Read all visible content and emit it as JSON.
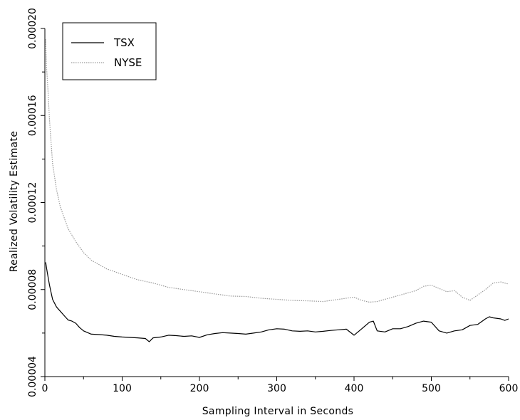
{
  "chart_data": {
    "type": "line",
    "title": "",
    "xlabel": "Sampling Interval in Seconds",
    "ylabel": "Realized Volatility Estimate",
    "xlim": [
      0,
      600
    ],
    "ylim": [
      4e-05,
      0.0002
    ],
    "xticks": [
      0,
      100,
      200,
      300,
      400,
      500,
      600
    ],
    "xtick_labels": [
      "0",
      "100",
      "200",
      "300",
      "400",
      "500",
      "600"
    ],
    "yticks": [
      4e-05,
      8e-05,
      0.00012,
      0.00016,
      0.0002
    ],
    "ytick_labels": [
      "0.00004",
      "0.00008",
      "0.00012",
      "0.00016",
      "0.00020"
    ],
    "yticks_minor": [
      6e-05,
      0.0001,
      0.00014,
      0.00018
    ],
    "grid": false,
    "legend": {
      "placement": "top-left"
    },
    "series": [
      {
        "name": "TSX",
        "color": "#000000",
        "style": "solid",
        "x": [
          1,
          3,
          6,
          10,
          15,
          20,
          25,
          30,
          35,
          40,
          45,
          50,
          60,
          70,
          80,
          90,
          100,
          110,
          120,
          130,
          135,
          140,
          150,
          160,
          170,
          180,
          190,
          200,
          210,
          220,
          230,
          240,
          250,
          260,
          270,
          280,
          290,
          300,
          310,
          320,
          330,
          340,
          350,
          360,
          370,
          380,
          390,
          400,
          410,
          420,
          425,
          430,
          440,
          450,
          460,
          470,
          480,
          490,
          500,
          510,
          520,
          530,
          540,
          550,
          560,
          570,
          575,
          580,
          590,
          595,
          600
        ],
        "y": [
          9.25e-05,
          8.8e-05,
          8.2e-05,
          7.55e-05,
          7.2e-05,
          7e-05,
          6.8e-05,
          6.6e-05,
          6.55e-05,
          6.45e-05,
          6.25e-05,
          6.1e-05,
          5.95e-05,
          5.93e-05,
          5.9e-05,
          5.85e-05,
          5.82e-05,
          5.8e-05,
          5.78e-05,
          5.75e-05,
          5.6e-05,
          5.78e-05,
          5.82e-05,
          5.9e-05,
          5.88e-05,
          5.85e-05,
          5.87e-05,
          5.8e-05,
          5.92e-05,
          5.98e-05,
          6.02e-05,
          6e-05,
          5.98e-05,
          5.95e-05,
          6e-05,
          6.05e-05,
          6.15e-05,
          6.2e-05,
          6.18e-05,
          6.1e-05,
          6.08e-05,
          6.1e-05,
          6.05e-05,
          6.08e-05,
          6.12e-05,
          6.15e-05,
          6.18e-05,
          5.9e-05,
          6.2e-05,
          6.5e-05,
          6.55e-05,
          6.1e-05,
          6.05e-05,
          6.2e-05,
          6.2e-05,
          6.3e-05,
          6.45e-05,
          6.55e-05,
          6.5e-05,
          6.1e-05,
          6e-05,
          6.1e-05,
          6.15e-05,
          6.35e-05,
          6.4e-05,
          6.65e-05,
          6.75e-05,
          6.7e-05,
          6.65e-05,
          6.58e-05,
          6.65e-05
        ]
      },
      {
        "name": "NYSE",
        "color": "#9a9a9a",
        "style": "dotted",
        "x": [
          1,
          2,
          4,
          6,
          10,
          15,
          20,
          30,
          40,
          50,
          60,
          80,
          100,
          120,
          140,
          150,
          160,
          170,
          180,
          190,
          200,
          220,
          240,
          260,
          280,
          300,
          320,
          340,
          360,
          380,
          400,
          410,
          420,
          430,
          440,
          460,
          480,
          490,
          500,
          510,
          520,
          530,
          540,
          550,
          560,
          570,
          580,
          590,
          600
        ],
        "y": [
          0.000195,
          0.000183,
          0.000172,
          0.000158,
          0.000138,
          0.000126,
          0.000118,
          0.000108,
          0.000102,
          9.7e-05,
          9.35e-05,
          8.95e-05,
          8.7e-05,
          8.45e-05,
          8.3e-05,
          8.2e-05,
          8.1e-05,
          8.05e-05,
          8e-05,
          7.95e-05,
          7.9e-05,
          7.8e-05,
          7.7e-05,
          7.68e-05,
          7.6e-05,
          7.55e-05,
          7.5e-05,
          7.48e-05,
          7.45e-05,
          7.55e-05,
          7.65e-05,
          7.5e-05,
          7.42e-05,
          7.45e-05,
          7.55e-05,
          7.75e-05,
          7.95e-05,
          8.15e-05,
          8.2e-05,
          8.05e-05,
          7.9e-05,
          7.95e-05,
          7.65e-05,
          7.5e-05,
          7.75e-05,
          8e-05,
          8.3e-05,
          8.35e-05,
          8.25e-05
        ]
      }
    ]
  }
}
